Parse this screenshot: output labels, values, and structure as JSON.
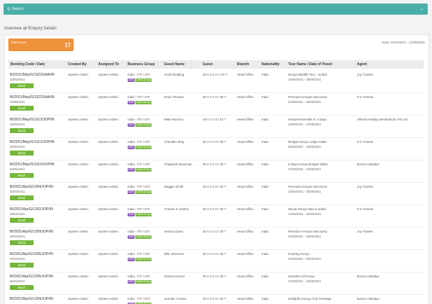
{
  "search": {
    "label": "Search"
  },
  "overview_label": "Overview all Enquiry Details",
  "total": {
    "label": "Total Count",
    "value": "17"
  },
  "date_range": "Date: 01/03/2021 - 12/05/2021",
  "columns": [
    "Booking Code / Date",
    "Created By",
    "Assigned To",
    "Business Group",
    "Guest Name",
    "Guest",
    "Branch",
    "Nationality",
    "Tour Name / Date of Travel",
    "Agent"
  ],
  "book_label": "Book",
  "badges": {
    "b2b": "B2B",
    "group": "Adfoo Group"
  },
  "rows": [
    {
      "code": "BI/2021/May/G/1323/SAA/IN",
      "date": "10/05/2021",
      "created": "System Admin",
      "assigned": "System Admin",
      "group": "India - FIT / GIT",
      "guest": "Scott Redding",
      "pax": "29 A 0 C 0 I 2 E T",
      "branch": "Head Office",
      "nat": "India",
      "tour": "Kenya Wildlife Tour - Scribd",
      "tour_date": "15/05/2021 - 20/05/2021",
      "agent": "Joy Travels"
    },
    {
      "code": "BI/2021/May/G/1322/SAA/IN",
      "date": "10/05/2021",
      "created": "System Admin",
      "assigned": "System Admin",
      "group": "India - FIT / GIT",
      "guest": "Dean Thomas",
      "pax": "30 A 0 C 0 I 30 T",
      "branch": "Head Office",
      "nat": "India",
      "tour": "Premium Kenyan Discovery",
      "tour_date": "01/05/2021 - 06/05/2021",
      "agent": "S K Travels"
    },
    {
      "code": "BI/2021/May/G/1313/JOP/IN",
      "date": "03/05/2021",
      "created": "System Admin",
      "assigned": "System Admin",
      "group": "India - FIT / GIT",
      "guest": "Mike Harrison",
      "pax": "19 A 0 C 0 I 19 T",
      "branch": "Head Office",
      "nat": "India",
      "tour": "Kenya Essentials In 4 Days",
      "tour_date": "24/05/2021 - 27/05/2021",
      "agent": "Vibrant Holiday Destinations Pvt Ltd"
    },
    {
      "code": "BI/2021/May/G/1312/JOP/IN",
      "date": "03/05/2021",
      "created": "System Admin",
      "assigned": "System Admin",
      "group": "India - FIT / GIT",
      "guest": "Chandler Bing",
      "pax": "30 A 0 C 0 I 30 T",
      "branch": "Head Office",
      "nat": "India",
      "tour": "Budget Kenya Lodge Safari",
      "tour_date": "05/06/2021 - 12/06/2021",
      "agent": "S K Travels"
    },
    {
      "code": "BI/2021/May/G/1310/JOP/IN",
      "date": "03/05/2021",
      "created": "System Admin",
      "assigned": "System Admin",
      "group": "India - FIT / GIT",
      "guest": "Chadwick Boseman",
      "pax": "30 A 0 C 0 I 30 T",
      "branch": "Head Office",
      "nat": "India",
      "tour": "6 Days Kenya Budget Safari",
      "tour_date": "07/06/2021 - 12/06/2021",
      "agent": "Borton Holidays"
    },
    {
      "code": "BI/2021/Apr/G/1304/JOP/IN",
      "date": "30/04/2021",
      "created": "System Admin",
      "assigned": "System Admin",
      "group": "India - FIT / GIT",
      "guest": "Maggie Smith",
      "pax": "30 A 0 C 0 I 30 T",
      "branch": "Head Office",
      "nat": "India",
      "tour": "Premium Kenyan Discovery",
      "tour_date": "15/05/2021 - 20/05/2021",
      "agent": "Joy Travels"
    },
    {
      "code": "BI/2021/Apr/G/1302/JOP/IN",
      "date": "29/04/2021",
      "created": "System Admin",
      "assigned": "System Admin",
      "group": "India - FIT / GIT",
      "guest": "Charles S. Dutton",
      "pax": "30 A 0 C 0 I 30 T",
      "branch": "Head Office",
      "nat": "India",
      "tour": "Mount Kenya Hike & Safari",
      "tour_date": "24/05/2021 - 31/05/2021",
      "agent": "S K Travels"
    },
    {
      "code": "BI/2021/Apr/G/1299/JOP/IN",
      "date": "28/04/2021",
      "created": "System Admin",
      "assigned": "System Admin",
      "group": "India - FIT / GIT",
      "guest": "Jessica Davis",
      "pax": "30 A 0 C 0 I 30 T",
      "branch": "Head Office",
      "nat": "India",
      "tour": "Premium Kenyan Discovery",
      "tour_date": "01/06/2021 - 06/06/2021",
      "agent": "Joy Travels"
    },
    {
      "code": "BI/2021/Apr/G/1296/JOP/IN",
      "date": "26/04/2021",
      "created": "System Admin",
      "assigned": "System Admin",
      "group": "India - FIT / GIT",
      "guest": "Ellie Jameson",
      "pax": "30 A 0 C 0 I 30 T",
      "branch": "Head Office",
      "nat": "India",
      "tour": "Roaring Kenya",
      "tour_date": "01/06/2021 - 06/06/2021",
      "agent": ""
    },
    {
      "code": "BI/2021/Apr/G/1295/JOP/IN",
      "date": "25/04/2021",
      "created": "System Admin",
      "assigned": "System Admin",
      "group": "India - FIT / GIT",
      "guest": "Selena Gomez",
      "pax": "30 A 0 C 0 I 30 T",
      "branch": "Head Office",
      "nat": "India",
      "tour": "Wonders Of Kenya",
      "tour_date": "07/05/2021 - 16/05/2021",
      "agent": "Borton Holidays"
    },
    {
      "code": "BI/2021/Apr/G/1294/JOP/IN",
      "date": "",
      "created": "System Admin",
      "assigned": "System Admin",
      "group": "India - FIT / GIT",
      "guest": "Jennifer Aniston",
      "pax": "30 A 0 C 0 I 30 T",
      "branch": "Head Office",
      "nat": "India",
      "tour": "Delightful Kenya Tour Package",
      "tour_date": "",
      "agent": "Borton Holidays"
    }
  ]
}
